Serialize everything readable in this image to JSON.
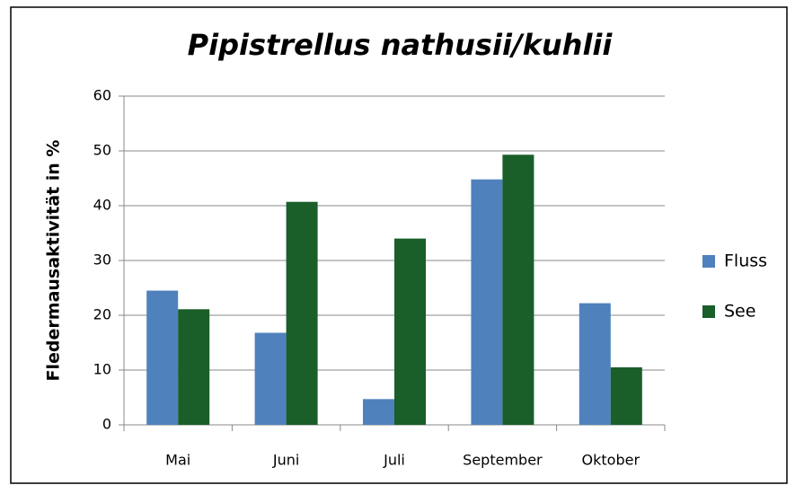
{
  "chart_data": {
    "type": "bar",
    "title": "Pipistrellus nathusii/kuhlii",
    "y_label": "Fledermausaktivität in %",
    "categories": [
      "Mai",
      "Juni",
      "Juli",
      "September",
      "Oktober"
    ],
    "series": [
      {
        "name": "Fluss",
        "color": "#4f81bd",
        "values": [
          24.5,
          16.8,
          4.7,
          44.8,
          22.2
        ]
      },
      {
        "name": "See",
        "color": "#1a5e2a",
        "values": [
          21.1,
          40.7,
          34.0,
          49.3,
          10.5
        ]
      }
    ],
    "ylim": [
      0,
      60
    ],
    "yticks": [
      0,
      10,
      20,
      30,
      40,
      50,
      60
    ],
    "grid": true,
    "legend": "right"
  }
}
